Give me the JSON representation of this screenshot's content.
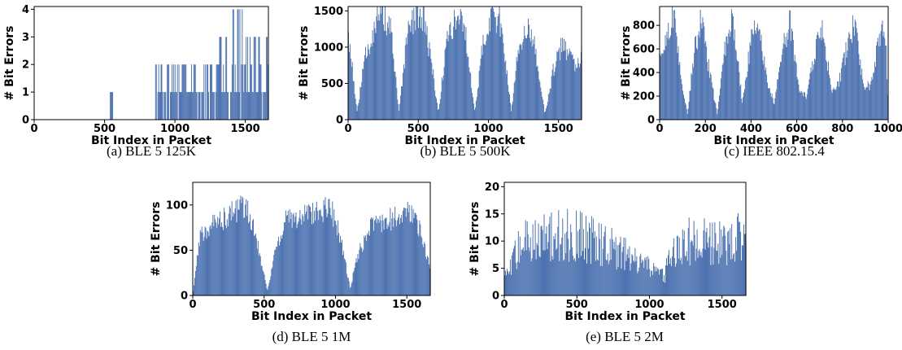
{
  "colors": {
    "bar": "#4c72b0"
  },
  "chart_data": [
    {
      "id": "a",
      "type": "bar",
      "caption": "(a) BLE 5 125K",
      "xlabel": "Bit Index in Packet",
      "ylabel": "# Bit Errors",
      "xlim": [
        0,
        1664
      ],
      "ylim": [
        0,
        4.1
      ],
      "xticks": [
        0,
        500,
        1000,
        1500
      ],
      "yticks": [
        0,
        1,
        2,
        3,
        4
      ],
      "profile": [
        [
          0,
          0
        ],
        [
          540,
          0
        ],
        [
          545,
          1
        ],
        [
          550,
          0
        ],
        [
          850,
          0
        ],
        [
          870,
          1.5
        ],
        [
          1000,
          1.5
        ],
        [
          1100,
          1.6
        ],
        [
          1200,
          1.6
        ],
        [
          1300,
          2
        ],
        [
          1400,
          2.5
        ],
        [
          1450,
          3
        ],
        [
          1500,
          2.2
        ],
        [
          1664,
          1.8
        ]
      ],
      "pattern": "sparse"
    },
    {
      "id": "b",
      "type": "bar",
      "caption": "(b) BLE 5 500K",
      "xlabel": "Bit Index in Packet",
      "ylabel": "# Bit Errors",
      "xlim": [
        0,
        1664
      ],
      "ylim": [
        0,
        1560
      ],
      "xticks": [
        0,
        500,
        1000,
        1500
      ],
      "yticks": [
        0,
        500,
        1000,
        1500
      ],
      "profile": [
        [
          0,
          1200
        ],
        [
          30,
          700
        ],
        [
          60,
          100
        ],
        [
          120,
          900
        ],
        [
          200,
          1420
        ],
        [
          240,
          1480
        ],
        [
          300,
          1300
        ],
        [
          360,
          100
        ],
        [
          420,
          1200
        ],
        [
          480,
          1480
        ],
        [
          540,
          1450
        ],
        [
          600,
          700
        ],
        [
          640,
          100
        ],
        [
          700,
          1100
        ],
        [
          760,
          1450
        ],
        [
          820,
          1420
        ],
        [
          860,
          800
        ],
        [
          900,
          100
        ],
        [
          960,
          1100
        ],
        [
          1020,
          1470
        ],
        [
          1080,
          1400
        ],
        [
          1130,
          700
        ],
        [
          1160,
          100
        ],
        [
          1210,
          1000
        ],
        [
          1280,
          1400
        ],
        [
          1330,
          1000
        ],
        [
          1360,
          650
        ],
        [
          1400,
          80
        ],
        [
          1460,
          700
        ],
        [
          1520,
          1050
        ],
        [
          1580,
          900
        ],
        [
          1620,
          700
        ],
        [
          1664,
          950
        ]
      ],
      "pattern": "dense"
    },
    {
      "id": "c",
      "type": "bar",
      "caption": "(c) IEEE 802.15.4",
      "xlabel": "Bit Index in Packet",
      "ylabel": "# Bit Errors",
      "xlim": [
        0,
        1000
      ],
      "ylim": [
        0,
        960
      ],
      "xticks": [
        0,
        200,
        400,
        600,
        800,
        1000
      ],
      "yticks": [
        0,
        200,
        400,
        600,
        800
      ],
      "profile": [
        [
          0,
          500
        ],
        [
          30,
          750
        ],
        [
          60,
          900
        ],
        [
          90,
          400
        ],
        [
          120,
          50
        ],
        [
          150,
          600
        ],
        [
          180,
          880
        ],
        [
          210,
          500
        ],
        [
          250,
          50
        ],
        [
          290,
          700
        ],
        [
          320,
          880
        ],
        [
          360,
          150
        ],
        [
          400,
          700
        ],
        [
          430,
          900
        ],
        [
          470,
          300
        ],
        [
          500,
          150
        ],
        [
          540,
          650
        ],
        [
          570,
          850
        ],
        [
          610,
          250
        ],
        [
          640,
          200
        ],
        [
          680,
          600
        ],
        [
          710,
          850
        ],
        [
          750,
          250
        ],
        [
          780,
          300
        ],
        [
          820,
          650
        ],
        [
          850,
          860
        ],
        [
          890,
          300
        ],
        [
          920,
          300
        ],
        [
          960,
          700
        ],
        [
          985,
          850
        ],
        [
          1000,
          0
        ]
      ],
      "pattern": "dense"
    },
    {
      "id": "d",
      "type": "bar",
      "caption": "(d) BLE 5 1M",
      "xlabel": "Bit Index in Packet",
      "ylabel": "# Bit Errors",
      "xlim": [
        0,
        1664
      ],
      "ylim": [
        0,
        125
      ],
      "xticks": [
        0,
        500,
        1000,
        1500
      ],
      "yticks": [
        0,
        50,
        100
      ],
      "profile": [
        [
          0,
          5
        ],
        [
          50,
          70
        ],
        [
          150,
          82
        ],
        [
          250,
          92
        ],
        [
          350,
          102
        ],
        [
          420,
          85
        ],
        [
          470,
          45
        ],
        [
          520,
          5
        ],
        [
          580,
          55
        ],
        [
          650,
          85
        ],
        [
          800,
          92
        ],
        [
          950,
          100
        ],
        [
          1000,
          88
        ],
        [
          1050,
          50
        ],
        [
          1100,
          8
        ],
        [
          1150,
          45
        ],
        [
          1250,
          80
        ],
        [
          1400,
          88
        ],
        [
          1550,
          95
        ],
        [
          1620,
          55
        ],
        [
          1664,
          30
        ]
      ],
      "pattern": "dense"
    },
    {
      "id": "e",
      "type": "bar",
      "caption": "(e) BLE 5 2M",
      "xlabel": "Bit Index in Packet",
      "ylabel": "# Bit Errors",
      "xlim": [
        0,
        1664
      ],
      "ylim": [
        0,
        20.8
      ],
      "xticks": [
        0,
        500,
        1000,
        1500
      ],
      "yticks": [
        0,
        5,
        10,
        15,
        20
      ],
      "profile": [
        [
          0,
          3
        ],
        [
          40,
          5
        ],
        [
          100,
          9
        ],
        [
          200,
          11
        ],
        [
          350,
          11
        ],
        [
          500,
          11
        ],
        [
          650,
          10
        ],
        [
          800,
          8
        ],
        [
          900,
          6
        ],
        [
          1000,
          5
        ],
        [
          1100,
          4
        ],
        [
          1150,
          7
        ],
        [
          1250,
          10
        ],
        [
          1350,
          10
        ],
        [
          1450,
          10
        ],
        [
          1550,
          10
        ],
        [
          1664,
          11
        ]
      ],
      "pattern": "noisy"
    }
  ]
}
